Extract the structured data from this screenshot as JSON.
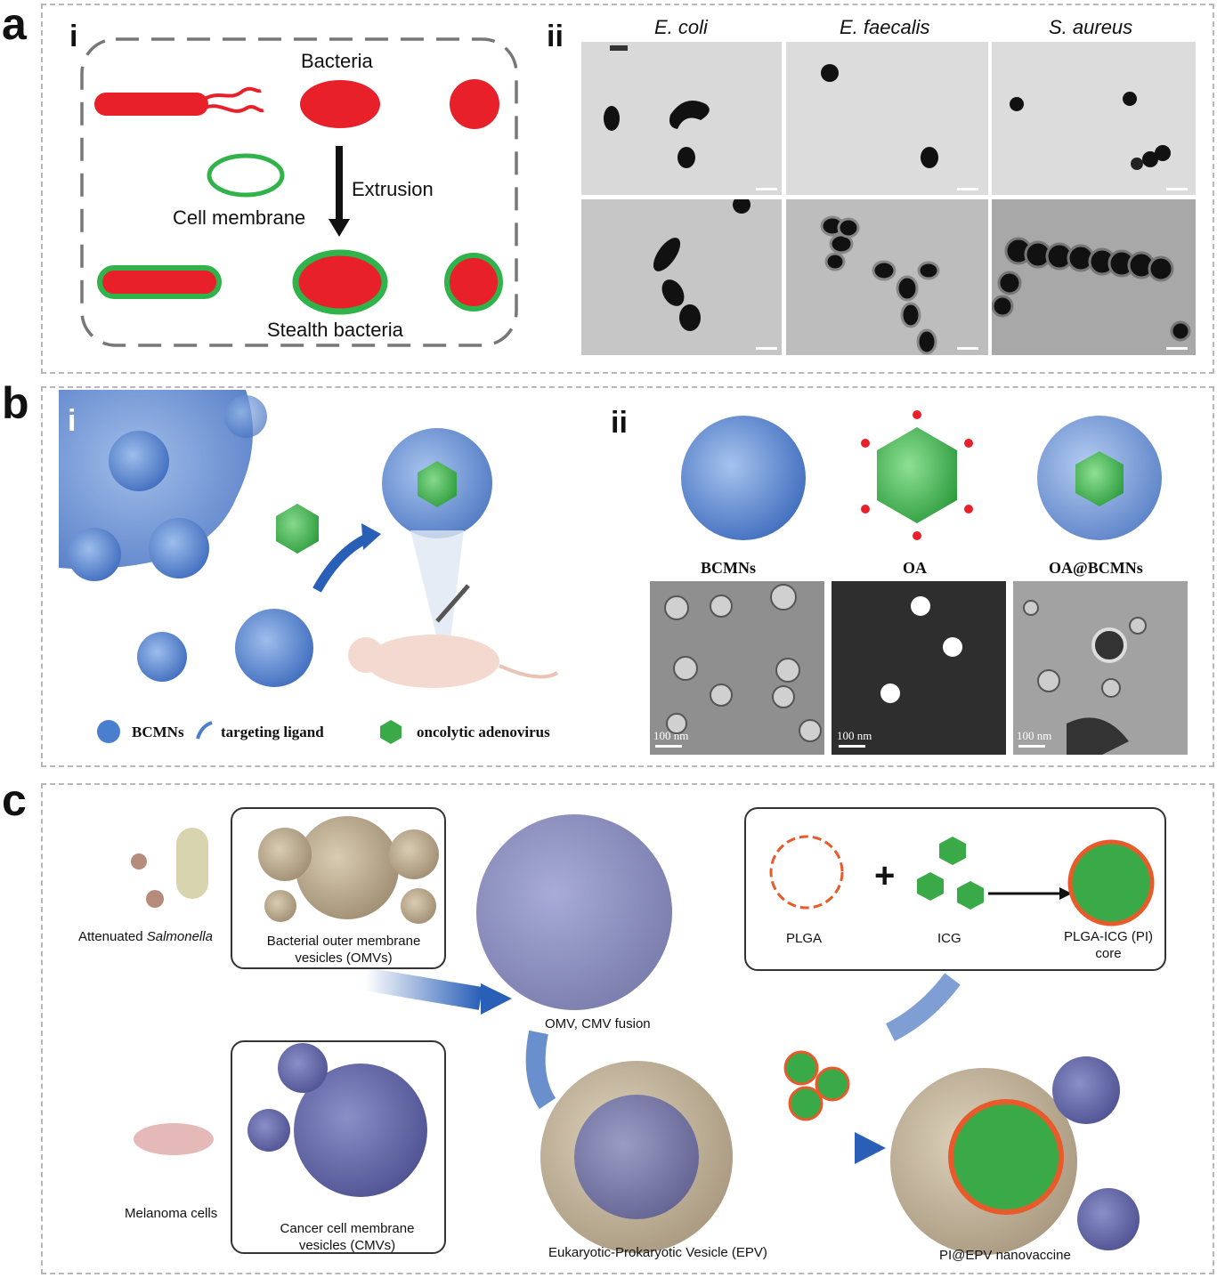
{
  "panels": {
    "a": {
      "label": "a",
      "i": {
        "label": "i",
        "bacteria": "Bacteria",
        "extrusion": "Extrusion",
        "cell_membrane": "Cell membrane",
        "stealth_bacteria": "Stealth bacteria"
      },
      "ii": {
        "label": "ii",
        "species": [
          "E. coli",
          "E. faecalis",
          "S. aureus"
        ]
      }
    },
    "b": {
      "label": "b",
      "i": {
        "label": "i",
        "legend": [
          "BCMNs",
          "targeting ligand",
          "oncolytic adenovirus"
        ]
      },
      "ii": {
        "label": "ii",
        "titles": [
          "BCMNs",
          "OA",
          "OA@BCMNs"
        ],
        "scale": "100 nm"
      }
    },
    "c": {
      "label": "c",
      "salmonella": "Attenuated",
      "salmonella_italic": "Salmonella",
      "omv_line1": "Bacterial outer membrane",
      "omv_line2": "vesicles (OMVs)",
      "melanoma": "Melanoma cells",
      "cmv_line1": "Cancer cell membrane",
      "cmv_line2": "vesicles (CMVs)",
      "fusion": "OMV, CMV fusion",
      "plga": "PLGA",
      "plus": "+",
      "icg": "ICG",
      "core_line1": "PLGA-ICG (PI)",
      "core_line2": "core",
      "epv": "Eukaryotic-Prokaryotic Vesicle (EPV)",
      "nanovaccine": "PI@EPV nanovaccine"
    }
  },
  "colors": {
    "bacteria_red": "#e8202a",
    "membrane_green": "#2fb34a",
    "virus_blue": "#4a7fd0",
    "adenovirus_green": "#3aa948",
    "arrow_blue": "#2a5fb8"
  }
}
